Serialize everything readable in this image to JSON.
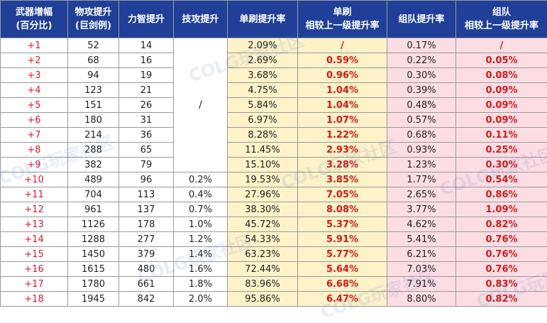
{
  "headers": [
    {
      "line1": "武器增幅",
      "line2": "(百分比)"
    },
    {
      "line1": "物攻提升",
      "line2": "(巨剑例)"
    },
    {
      "line1": "力智提升",
      "line2": ""
    },
    {
      "line1": "技攻提升",
      "line2": ""
    },
    {
      "line1": "单刷提升率",
      "line2": ""
    },
    {
      "line1": "单刷",
      "line2": "相较上一级提升率"
    },
    {
      "line1": "组队提升率",
      "line2": ""
    },
    {
      "line1": "组队",
      "line2": "相较上一级提升率"
    }
  ],
  "skill_merged_value": "/",
  "rows": [
    {
      "level": "+1",
      "atk": "52",
      "stat": "14",
      "skill": null,
      "solo": "2.09%",
      "solo_delta": "/",
      "team": "0.17%",
      "team_delta": "/"
    },
    {
      "level": "+2",
      "atk": "68",
      "stat": "16",
      "skill": null,
      "solo": "2.69%",
      "solo_delta": "0.59%",
      "team": "0.22%",
      "team_delta": "0.05%"
    },
    {
      "level": "+3",
      "atk": "94",
      "stat": "19",
      "skill": null,
      "solo": "3.68%",
      "solo_delta": "0.96%",
      "team": "0.30%",
      "team_delta": "0.08%"
    },
    {
      "level": "+4",
      "atk": "123",
      "stat": "21",
      "skill": null,
      "solo": "4.75%",
      "solo_delta": "1.04%",
      "team": "0.39%",
      "team_delta": "0.09%"
    },
    {
      "level": "+5",
      "atk": "151",
      "stat": "26",
      "skill": null,
      "solo": "5.84%",
      "solo_delta": "1.04%",
      "team": "0.48%",
      "team_delta": "0.09%"
    },
    {
      "level": "+6",
      "atk": "180",
      "stat": "31",
      "skill": null,
      "solo": "6.97%",
      "solo_delta": "1.07%",
      "team": "0.57%",
      "team_delta": "0.09%"
    },
    {
      "level": "+7",
      "atk": "214",
      "stat": "36",
      "skill": null,
      "solo": "8.28%",
      "solo_delta": "1.22%",
      "team": "0.68%",
      "team_delta": "0.11%"
    },
    {
      "level": "+8",
      "atk": "288",
      "stat": "65",
      "skill": null,
      "solo": "11.45%",
      "solo_delta": "2.93%",
      "team": "0.93%",
      "team_delta": "0.25%"
    },
    {
      "level": "+9",
      "atk": "382",
      "stat": "79",
      "skill": null,
      "solo": "15.10%",
      "solo_delta": "3.28%",
      "team": "1.23%",
      "team_delta": "0.30%"
    },
    {
      "level": "+10",
      "atk": "489",
      "stat": "96",
      "skill": "0.2%",
      "solo": "19.53%",
      "solo_delta": "3.85%",
      "team": "1.77%",
      "team_delta": "0.54%"
    },
    {
      "level": "+11",
      "atk": "704",
      "stat": "113",
      "skill": "0.4%",
      "solo": "27.96%",
      "solo_delta": "7.05%",
      "team": "2.65%",
      "team_delta": "0.86%"
    },
    {
      "level": "+12",
      "atk": "961",
      "stat": "137",
      "skill": "0.7%",
      "solo": "38.30%",
      "solo_delta": "8.08%",
      "team": "3.77%",
      "team_delta": "1.09%"
    },
    {
      "level": "+13",
      "atk": "1126",
      "stat": "178",
      "skill": "1.0%",
      "solo": "45.72%",
      "solo_delta": "5.37%",
      "team": "4.62%",
      "team_delta": "0.82%"
    },
    {
      "level": "+14",
      "atk": "1288",
      "stat": "277",
      "skill": "1.2%",
      "solo": "54.33%",
      "solo_delta": "5.91%",
      "team": "5.41%",
      "team_delta": "0.76%"
    },
    {
      "level": "+15",
      "atk": "1450",
      "stat": "379",
      "skill": "1.4%",
      "solo": "63.23%",
      "solo_delta": "5.77%",
      "team": "6.21%",
      "team_delta": "0.76%"
    },
    {
      "level": "+16",
      "atk": "1615",
      "stat": "480",
      "skill": "1.6%",
      "solo": "72.44%",
      "solo_delta": "5.64%",
      "team": "7.03%",
      "team_delta": "0.76%"
    },
    {
      "level": "+17",
      "atk": "1780",
      "stat": "661",
      "skill": "1.8%",
      "solo": "83.96%",
      "solo_delta": "6.68%",
      "team": "7.91%",
      "team_delta": "0.83%"
    },
    {
      "level": "+18",
      "atk": "1945",
      "stat": "842",
      "skill": "2.0%",
      "solo": "95.86%",
      "solo_delta": "6.47%",
      "team": "8.80%",
      "team_delta": "0.82%"
    }
  ],
  "watermark_text": "COLG玩家社区",
  "colors": {
    "header_bg": "#1f3f99",
    "header_text": "#ffffff",
    "level_text": "#e0182c",
    "solo_bg": "#fdf2c8",
    "team_bg": "#fddde4",
    "delta_text": "#d01a1a"
  }
}
